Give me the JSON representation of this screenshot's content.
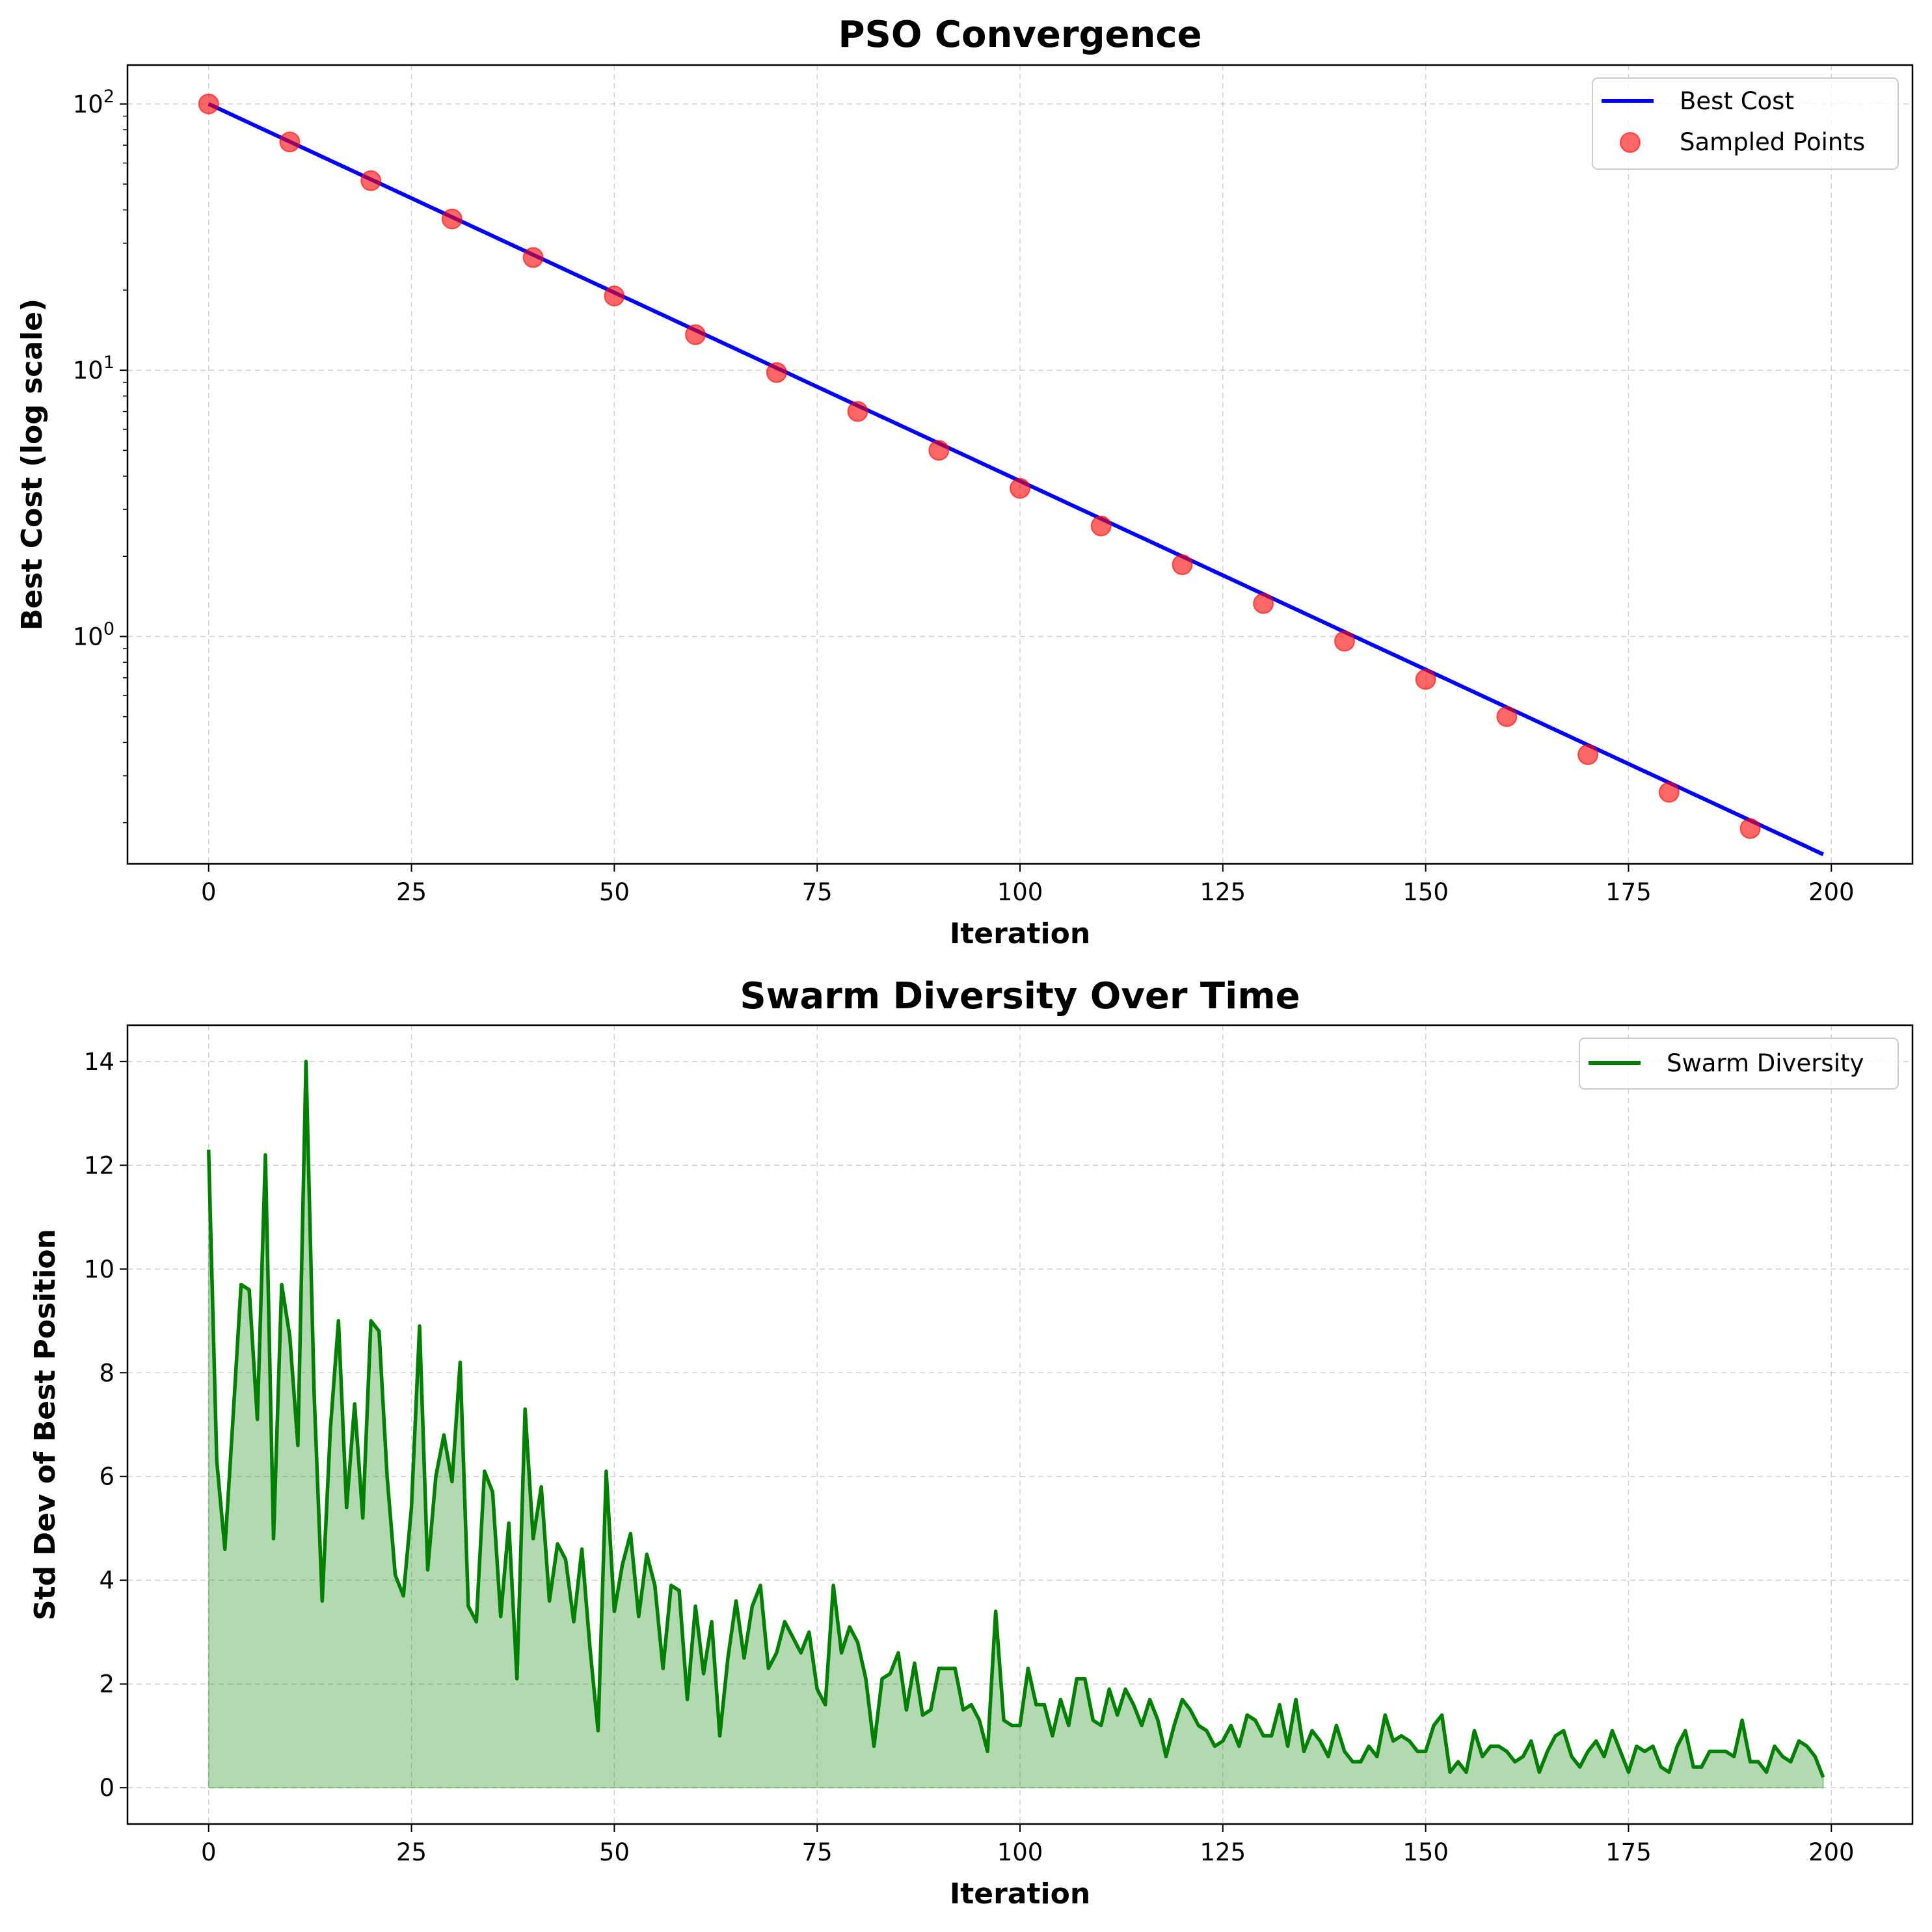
{
  "chart_data": [
    {
      "type": "line",
      "title": "PSO Convergence",
      "xlabel": "Iteration",
      "ylabel": "Best Cost (log scale)",
      "yscale": "log",
      "xlim": [
        -10,
        210
      ],
      "ylim": [
        0.14,
        140
      ],
      "xticks": [
        0,
        25,
        50,
        75,
        100,
        125,
        150,
        175,
        200
      ],
      "xtick_labels": [
        "0",
        "25",
        "50",
        "75",
        "100",
        "125",
        "150",
        "175",
        "200"
      ],
      "yticks": [
        1,
        10,
        100
      ],
      "ytick_labels": [
        {
          "base": "10",
          "exp": "0"
        },
        {
          "base": "10",
          "exp": "1"
        },
        {
          "base": "10",
          "exp": "2"
        }
      ],
      "grid": true,
      "legend_position": "top-right",
      "series": [
        {
          "name": "Best Cost",
          "kind": "line",
          "color": "#0000ff",
          "model": "exponential-decay",
          "x_start": 0,
          "x_end": 199,
          "y_start": 100,
          "y_end": 0.152
        },
        {
          "name": "Sampled Points",
          "kind": "scatter",
          "color": "#ff0000",
          "x": [
            0,
            10,
            20,
            30,
            40,
            50,
            60,
            70,
            80,
            90,
            100,
            110,
            120,
            130,
            140,
            150,
            160,
            170,
            180,
            190
          ],
          "y": [
            100,
            72,
            51.5,
            37,
            26.5,
            19,
            13.6,
            9.8,
            7,
            5,
            3.6,
            2.6,
            1.86,
            1.33,
            0.96,
            0.69,
            0.5,
            0.36,
            0.26,
            0.19
          ]
        }
      ]
    },
    {
      "type": "area",
      "title": "Swarm Diversity Over Time",
      "xlabel": "Iteration",
      "ylabel": "Std Dev of Best Position",
      "xlim": [
        -10,
        210
      ],
      "ylim": [
        -0.7,
        14.7
      ],
      "xticks": [
        0,
        25,
        50,
        75,
        100,
        125,
        150,
        175,
        200
      ],
      "xtick_labels": [
        "0",
        "25",
        "50",
        "75",
        "100",
        "125",
        "150",
        "175",
        "200"
      ],
      "yticks": [
        0,
        2,
        4,
        6,
        8,
        10,
        12,
        14
      ],
      "ytick_labels": [
        "0",
        "2",
        "4",
        "6",
        "8",
        "10",
        "12",
        "14"
      ],
      "grid": true,
      "legend_position": "top-right",
      "series": [
        {
          "name": "Swarm Diversity",
          "color": "#008000",
          "fill_color": "#008000",
          "x_start": 0,
          "x_step": 1,
          "values": [
            12.3,
            6.3,
            4.6,
            7.1,
            9.7,
            9.6,
            7.1,
            12.2,
            4.8,
            9.7,
            8.7,
            6.6,
            14.0,
            7.6,
            3.6,
            6.9,
            9.0,
            5.4,
            7.4,
            5.2,
            9.0,
            8.8,
            6.0,
            4.1,
            3.7,
            5.4,
            8.9,
            4.2,
            6.0,
            6.8,
            5.9,
            8.2,
            3.5,
            3.2,
            6.1,
            5.7,
            3.3,
            5.1,
            2.1,
            7.3,
            4.8,
            5.8,
            3.6,
            4.7,
            4.4,
            3.2,
            4.6,
            2.7,
            1.1,
            6.1,
            3.4,
            4.3,
            4.9,
            3.3,
            4.5,
            3.9,
            2.3,
            3.9,
            3.8,
            1.7,
            3.5,
            2.2,
            3.2,
            1.0,
            2.5,
            3.6,
            2.5,
            3.5,
            3.9,
            2.3,
            2.6,
            3.2,
            2.9,
            2.6,
            3.0,
            1.9,
            1.6,
            3.9,
            2.6,
            3.1,
            2.8,
            2.1,
            0.8,
            2.1,
            2.2,
            2.6,
            1.5,
            2.4,
            1.4,
            1.5,
            2.3,
            2.3,
            2.3,
            1.5,
            1.6,
            1.3,
            0.7,
            3.4,
            1.3,
            1.2,
            1.2,
            2.3,
            1.6,
            1.6,
            1.0,
            1.7,
            1.2,
            2.1,
            2.1,
            1.3,
            1.2,
            1.9,
            1.4,
            1.9,
            1.6,
            1.2,
            1.7,
            1.3,
            0.6,
            1.2,
            1.7,
            1.5,
            1.2,
            1.1,
            0.8,
            0.9,
            1.2,
            0.8,
            1.4,
            1.3,
            1.0,
            1.0,
            1.6,
            0.8,
            1.7,
            0.7,
            1.1,
            0.9,
            0.6,
            1.2,
            0.7,
            0.5,
            0.5,
            0.8,
            0.6,
            1.4,
            0.9,
            1.0,
            0.9,
            0.7,
            0.7,
            1.2,
            1.4,
            0.3,
            0.5,
            0.3,
            1.1,
            0.6,
            0.8,
            0.8,
            0.7,
            0.5,
            0.6,
            0.9,
            0.3,
            0.7,
            1.0,
            1.1,
            0.6,
            0.4,
            0.7,
            0.9,
            0.6,
            1.1,
            0.7,
            0.3,
            0.8,
            0.7,
            0.8,
            0.4,
            0.3,
            0.8,
            1.1,
            0.4,
            0.4,
            0.7,
            0.7,
            0.7,
            0.6,
            1.3,
            0.5,
            0.5,
            0.3,
            0.8,
            0.6,
            0.5,
            0.9,
            0.8,
            0.6,
            0.2
          ]
        }
      ]
    }
  ]
}
